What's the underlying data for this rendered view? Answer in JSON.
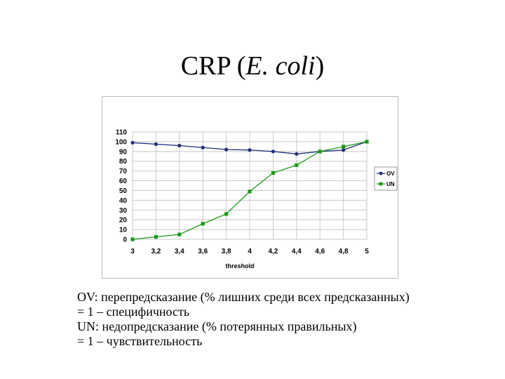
{
  "slide": {
    "title_prefix": "CRP (",
    "title_italic": "E. coli",
    "title_suffix": ")"
  },
  "caption": {
    "lines": [
      "OV: перепредсказание (% лишних среди всех предсказанных)",
      "= 1 – специфичность",
      "UN: недопредсказание (% потерянных правильных)",
      "= 1 – чувствительность"
    ]
  },
  "chart_data": {
    "type": "line",
    "title": "",
    "xlabel": "threshold",
    "ylabel": "",
    "categories": [
      "3",
      "3,2",
      "3,4",
      "3,6",
      "3,8",
      "4",
      "4,2",
      "4,4",
      "4,6",
      "4,8",
      "5"
    ],
    "yticks": [
      "0",
      "10",
      "20",
      "30",
      "40",
      "50",
      "60",
      "70",
      "80",
      "90",
      "100",
      "110"
    ],
    "ylim": [
      0,
      110
    ],
    "grid": true,
    "legend_position": "right",
    "series": [
      {
        "name": "OV",
        "color": "#1f2f7a",
        "marker": "circle",
        "values": [
          99,
          97.5,
          96,
          94,
          92,
          91.5,
          90,
          87.5,
          90,
          91.5,
          100
        ]
      },
      {
        "name": "UN",
        "color": "#1a9a1a",
        "marker": "square",
        "values": [
          0,
          2.5,
          5,
          16,
          26,
          49,
          68,
          76,
          90,
          95,
          100
        ]
      }
    ]
  }
}
